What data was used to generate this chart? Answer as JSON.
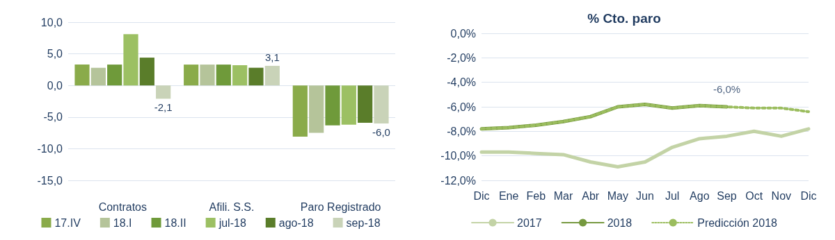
{
  "chart_data": [
    {
      "type": "bar",
      "categories": [
        "Contratos",
        "Afili. S.S.",
        "Paro Registrado"
      ],
      "series": [
        {
          "name": "17.IV",
          "color": "#8aab4a",
          "values": [
            3.3,
            3.3,
            -8.1
          ]
        },
        {
          "name": "18.I",
          "color": "#b5c49a",
          "values": [
            2.8,
            3.3,
            -7.5
          ]
        },
        {
          "name": "18.II",
          "color": "#6f9a3a",
          "values": [
            3.3,
            3.3,
            -6.3
          ]
        },
        {
          "name": "jul-18",
          "color": "#9cc063",
          "values": [
            8.1,
            3.2,
            -6.2
          ]
        },
        {
          "name": "ago-18",
          "color": "#5a7d2a",
          "values": [
            4.4,
            2.8,
            -5.9
          ]
        },
        {
          "name": "sep-18",
          "color": "#c9d3b8",
          "values": [
            -2.1,
            3.1,
            -6.0
          ],
          "value_labels": [
            "-2,1",
            "3,1",
            "-6,0"
          ]
        }
      ],
      "ylim": [
        -15,
        10
      ],
      "yticks": [
        {
          "value": -15,
          "label": "-15,0"
        },
        {
          "value": -10,
          "label": "-10,0"
        },
        {
          "value": -5,
          "label": "-5,0"
        },
        {
          "value": 0,
          "label": "0,0"
        },
        {
          "value": 5,
          "label": "5,0"
        },
        {
          "value": 10,
          "label": "10,0"
        }
      ],
      "grid": "y",
      "legend": "bottom"
    },
    {
      "type": "line",
      "title": "% Cto. paro",
      "categories": [
        "Dic",
        "Ene",
        "Feb",
        "Mar",
        "Abr",
        "May",
        "Jun",
        "Jul",
        "Ago",
        "Sep",
        "Oct",
        "Nov",
        "Dic"
      ],
      "series": [
        {
          "name": "2017",
          "color": "#c3d3a6",
          "line_style": "solid",
          "values": [
            -9.7,
            -9.7,
            -9.8,
            -9.9,
            -10.5,
            -10.9,
            -10.5,
            -9.3,
            -8.6,
            -8.4,
            -8.0,
            -8.4,
            -7.8
          ]
        },
        {
          "name": "2018",
          "color": "#76993f",
          "line_style": "solid",
          "values": [
            -7.8,
            -7.7,
            -7.5,
            -7.2,
            -6.8,
            -6.0,
            -5.8,
            -6.1,
            -5.9,
            -6.0,
            null,
            null,
            null
          ]
        },
        {
          "name": "Predicción 2018",
          "color": "#9bbd5e",
          "line_style": "dotted",
          "values": [
            -7.8,
            -7.7,
            -7.5,
            -7.2,
            -6.8,
            -6.0,
            -5.8,
            -6.1,
            -5.9,
            -6.0,
            -6.1,
            -6.1,
            -6.4
          ]
        }
      ],
      "ylim": [
        -12,
        0
      ],
      "yticks": [
        {
          "value": -12,
          "label": "-12,0%"
        },
        {
          "value": -10,
          "label": "-10,0%"
        },
        {
          "value": -8,
          "label": "-8,0%"
        },
        {
          "value": -6,
          "label": "-6,0%"
        },
        {
          "value": -4,
          "label": "-4,0%"
        },
        {
          "value": -2,
          "label": "-2,0%"
        },
        {
          "value": 0,
          "label": "0,0%"
        }
      ],
      "annotations": [
        {
          "text": "-6,0%",
          "x": "Sep",
          "y": -6.0
        }
      ],
      "grid": "y",
      "legend": "bottom",
      "marker": "none"
    }
  ]
}
